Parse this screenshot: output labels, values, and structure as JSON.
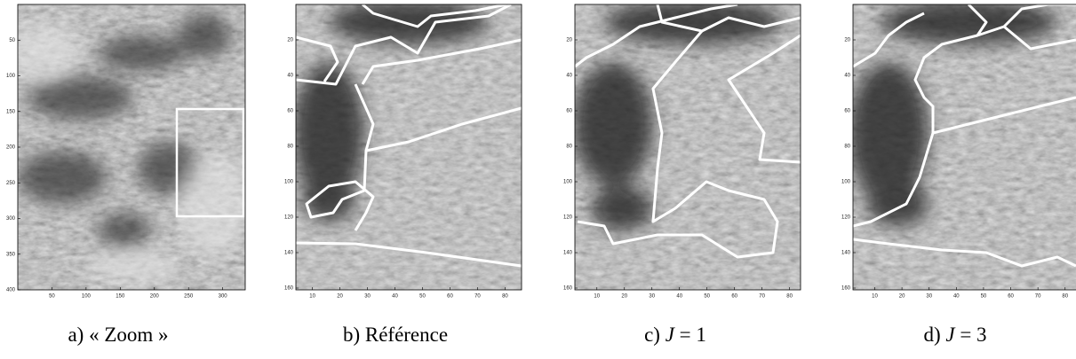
{
  "panels": [
    {
      "caption_label": "a)",
      "caption_var": "",
      "caption_text": "« Zoom »",
      "xlim": [
        0,
        333
      ],
      "ylim": [
        0,
        400
      ],
      "xticks": [
        50,
        100,
        150,
        200,
        250,
        300
      ],
      "yticks": [
        50,
        100,
        150,
        200,
        250,
        300,
        350,
        400
      ]
    },
    {
      "caption_label": "b)",
      "caption_var": "",
      "caption_text": "Référence",
      "xlim": [
        4,
        86
      ],
      "ylim": [
        0,
        161
      ],
      "xticks": [
        10,
        20,
        30,
        40,
        50,
        60,
        70,
        80
      ],
      "yticks": [
        20,
        40,
        60,
        80,
        100,
        120,
        140,
        160
      ]
    },
    {
      "caption_label": "c)",
      "caption_var": "J",
      "caption_text": "= 1",
      "xlim": [
        2,
        84
      ],
      "ylim": [
        0,
        161
      ],
      "xticks": [
        10,
        20,
        30,
        40,
        50,
        60,
        70,
        80
      ],
      "yticks": [
        20,
        40,
        60,
        80,
        100,
        120,
        140,
        160
      ]
    },
    {
      "caption_label": "d)",
      "caption_var": "J",
      "caption_text": "= 3",
      "xlim": [
        2,
        84
      ],
      "ylim": [
        0,
        161
      ],
      "xticks": [
        10,
        20,
        30,
        40,
        50,
        60,
        70,
        80
      ],
      "yticks": [
        20,
        40,
        60,
        80,
        100,
        120,
        140,
        160
      ]
    }
  ]
}
